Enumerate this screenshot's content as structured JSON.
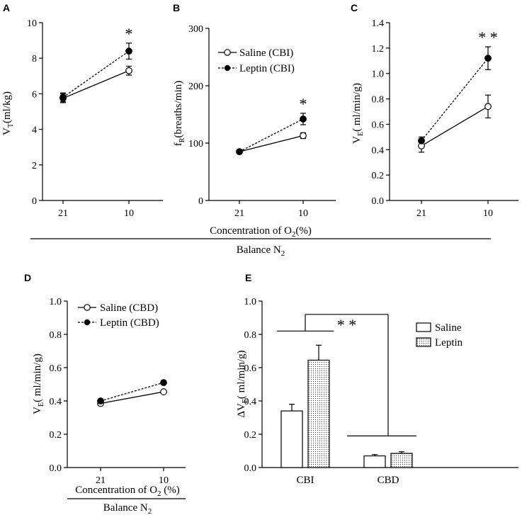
{
  "figure": {
    "group_label_top": "Balance N",
    "group_label_top_sub": "2",
    "group_label_bottom": "Balance N",
    "group_label_bottom_sub": "2",
    "shared_xlabel_top": "Concentration of O",
    "shared_xlabel_top_sub": "2",
    "shared_xlabel_top_tail": "(%)"
  },
  "colors": {
    "ink": "#000000",
    "background": "#ffffff"
  },
  "chart_data": [
    {
      "id": "A",
      "type": "line",
      "title": "",
      "panel_label": "A",
      "ylabel_main": "V",
      "ylabel_sub": "T",
      "ylabel_tail": "(ml/kg)",
      "categories": [
        "21",
        "10"
      ],
      "ylim": [
        0,
        10
      ],
      "yticks": [
        "0",
        "2",
        "4",
        "6",
        "8",
        "10"
      ],
      "yticks_values": [
        0,
        2,
        4,
        6,
        8,
        10
      ],
      "series": [
        {
          "name": "Saline (CBI)",
          "marker": "open",
          "dash": false,
          "values": [
            5.75,
            7.3
          ],
          "errors": [
            0.25,
            0.25
          ]
        },
        {
          "name": "Leptin (CBI)",
          "marker": "filled",
          "dash": true,
          "values": [
            5.8,
            8.4
          ],
          "errors": [
            0.25,
            0.45
          ]
        }
      ],
      "annotations": [
        {
          "text": "*",
          "category": "10"
        }
      ]
    },
    {
      "id": "B",
      "type": "line",
      "title": "",
      "panel_label": "B",
      "ylabel_main": "f",
      "ylabel_sub": "R",
      "ylabel_tail": "(breaths/min)",
      "categories": [
        "21",
        "10"
      ],
      "ylim": [
        0,
        300
      ],
      "yticks": [
        "0",
        "100",
        "200",
        "300"
      ],
      "yticks_values": [
        0,
        100,
        200,
        300
      ],
      "series": [
        {
          "name": "Saline (CBI)",
          "marker": "open",
          "dash": false,
          "values": [
            85,
            113
          ],
          "errors": [
            3,
            5
          ]
        },
        {
          "name": "Leptin (CBI)",
          "marker": "filled",
          "dash": true,
          "values": [
            85,
            142
          ],
          "errors": [
            3,
            10
          ]
        }
      ],
      "legend": [
        "Saline (CBI)",
        "Leptin (CBI)"
      ],
      "annotations": [
        {
          "text": "*",
          "category": "10"
        }
      ]
    },
    {
      "id": "C",
      "type": "line",
      "title": "",
      "panel_label": "C",
      "ylabel_main": "V",
      "ylabel_sub": "E",
      "ylabel_tail": "( ml/min/g)",
      "categories": [
        "21",
        "10"
      ],
      "ylim": [
        0,
        1.4
      ],
      "yticks": [
        "0.0",
        "0.2",
        "0.4",
        "0.6",
        "0.8",
        "1.0",
        "1.2",
        "1.4"
      ],
      "yticks_values": [
        0,
        0.2,
        0.4,
        0.6,
        0.8,
        1.0,
        1.2,
        1.4
      ],
      "series": [
        {
          "name": "Saline (CBI)",
          "marker": "open",
          "dash": false,
          "values": [
            0.43,
            0.74
          ],
          "errors": [
            0.05,
            0.09
          ]
        },
        {
          "name": "Leptin (CBI)",
          "marker": "filled",
          "dash": true,
          "values": [
            0.47,
            1.12
          ],
          "errors": [
            0.03,
            0.09
          ]
        }
      ],
      "annotations": [
        {
          "text": "* *",
          "category": "10"
        }
      ]
    },
    {
      "id": "D",
      "type": "line",
      "title": "",
      "panel_label": "D",
      "ylabel_main": "V",
      "ylabel_sub": "E",
      "ylabel_tail": "( ml/min/g)",
      "categories": [
        "21",
        "10"
      ],
      "ylim": [
        0,
        1.0
      ],
      "yticks": [
        "0.0",
        "0.2",
        "0.4",
        "0.6",
        "0.8",
        "1.0"
      ],
      "yticks_values": [
        0,
        0.2,
        0.4,
        0.6,
        0.8,
        1.0
      ],
      "series": [
        {
          "name": "Saline (CBD)",
          "marker": "open",
          "dash": false,
          "values": [
            0.385,
            0.455
          ],
          "errors": [
            0.01,
            0.01
          ]
        },
        {
          "name": "Leptin (CBD)",
          "marker": "filled",
          "dash": true,
          "values": [
            0.4,
            0.51
          ],
          "errors": [
            0.01,
            0.01
          ]
        }
      ],
      "legend": [
        "Saline (CBD)",
        "Leptin (CBD)"
      ],
      "xlabel_main": "Concentration of O",
      "xlabel_sub": "2",
      "xlabel_tail": " (%)"
    },
    {
      "id": "E",
      "type": "bar",
      "title": "",
      "panel_label": "E",
      "ylabel_main": "ΔV",
      "ylabel_sub": "E",
      "ylabel_tail": "( ml/min/g)",
      "categories": [
        "CBI",
        "CBD"
      ],
      "ylim": [
        0,
        1.0
      ],
      "yticks": [
        "0.0",
        "0.2",
        "0.4",
        "0.6",
        "0.8",
        "1.0"
      ],
      "yticks_values": [
        0,
        0.2,
        0.4,
        0.6,
        0.8,
        1.0
      ],
      "series": [
        {
          "name": "Saline",
          "pattern": "open",
          "values": [
            0.34,
            0.07
          ],
          "errors": [
            0.04,
            0.008
          ]
        },
        {
          "name": "Leptin",
          "pattern": "dotted",
          "values": [
            0.645,
            0.085
          ],
          "errors": [
            0.09,
            0.01
          ]
        }
      ],
      "legend": [
        "Saline",
        "Leptin"
      ],
      "annotations": [
        {
          "text": "* *",
          "between": [
            "CBI",
            "CBD"
          ]
        }
      ]
    }
  ]
}
